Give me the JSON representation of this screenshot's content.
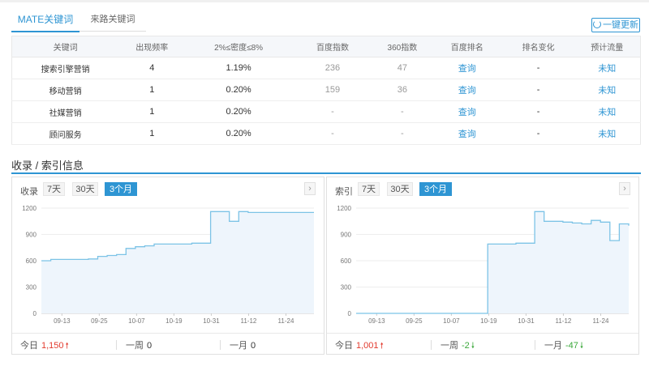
{
  "tabs": [
    {
      "label": "MATE关键词",
      "active": true
    },
    {
      "label": "来路关键词",
      "active": false
    }
  ],
  "refresh_label": "一键更新",
  "table": {
    "headers": [
      "关键词",
      "出现频率",
      "2%≤密度≤8%",
      "百度指数",
      "360指数",
      "百度排名",
      "排名变化",
      "预计流量"
    ],
    "rows": [
      [
        "搜索引擎营销",
        "4",
        "1.19%",
        "236",
        "47",
        "查询",
        "-",
        "未知"
      ],
      [
        "移动营销",
        "1",
        "0.20%",
        "159",
        "36",
        "查询",
        "-",
        "未知"
      ],
      [
        "社媒营销",
        "1",
        "0.20%",
        "-",
        "-",
        "查询",
        "-",
        "未知"
      ],
      [
        "顾问服务",
        "1",
        "0.20%",
        "-",
        "-",
        "查询",
        "-",
        "未知"
      ]
    ]
  },
  "section_title": "收录 / 索引信息",
  "colors": {
    "accent": "#2e95d3",
    "line": "#7cc3e6",
    "fill": "#eef5fc",
    "up": "#e23a2e",
    "down": "#3aa83a"
  },
  "panels": {
    "left": {
      "label": "收录",
      "ranges": [
        "7天",
        "30天",
        "3个月"
      ],
      "active_range": "3个月",
      "stats": {
        "today_label": "今日",
        "today_value": "1,150",
        "today_dir": "up",
        "week_label": "一周",
        "week_value": "0",
        "week_dir": "none",
        "month_label": "一月",
        "month_value": "0",
        "month_dir": "none"
      }
    },
    "right": {
      "label": "索引",
      "ranges": [
        "7天",
        "30天",
        "3个月"
      ],
      "active_range": "3个月",
      "stats": {
        "today_label": "今日",
        "today_value": "1,001",
        "today_dir": "up",
        "week_label": "一周",
        "week_value": "-2",
        "week_dir": "down",
        "month_label": "一月",
        "month_value": "-47",
        "month_dir": "down"
      }
    }
  },
  "chart_data": [
    {
      "type": "area",
      "ylim": [
        0,
        1200
      ],
      "yticks": [
        0,
        300,
        600,
        900,
        1200
      ],
      "xlabels": [
        "09-13",
        "09-25",
        "10-07",
        "10-19",
        "10-31",
        "11-12",
        "11-24"
      ],
      "x": [
        0,
        1,
        2,
        3,
        4,
        5,
        6,
        7,
        8,
        9,
        10,
        11,
        12,
        13,
        14,
        15,
        16,
        17,
        18,
        19,
        20,
        21,
        22,
        23,
        24,
        25,
        26,
        27,
        28,
        29
      ],
      "values": [
        600,
        615,
        615,
        615,
        615,
        620,
        650,
        660,
        670,
        740,
        760,
        770,
        790,
        790,
        790,
        790,
        800,
        800,
        1160,
        1160,
        1050,
        1160,
        1150,
        1150,
        1150,
        1150,
        1150,
        1150,
        1150,
        1150
      ]
    },
    {
      "type": "area",
      "ylim": [
        0,
        1200
      ],
      "yticks": [
        0,
        300,
        600,
        900,
        1200
      ],
      "xlabels": [
        "09-13",
        "09-25",
        "10-07",
        "10-19",
        "10-31",
        "11-12",
        "11-24"
      ],
      "x": [
        0,
        1,
        2,
        3,
        4,
        5,
        6,
        7,
        8,
        9,
        10,
        11,
        12,
        13,
        14,
        15,
        16,
        17,
        18,
        19,
        20,
        21,
        22,
        23,
        24,
        25,
        26,
        27,
        28,
        29
      ],
      "values": [
        0,
        0,
        0,
        0,
        0,
        0,
        0,
        0,
        0,
        0,
        0,
        0,
        0,
        0,
        790,
        790,
        790,
        800,
        800,
        1160,
        1050,
        1050,
        1040,
        1030,
        1020,
        1060,
        1040,
        830,
        1020,
        1000
      ]
    }
  ]
}
